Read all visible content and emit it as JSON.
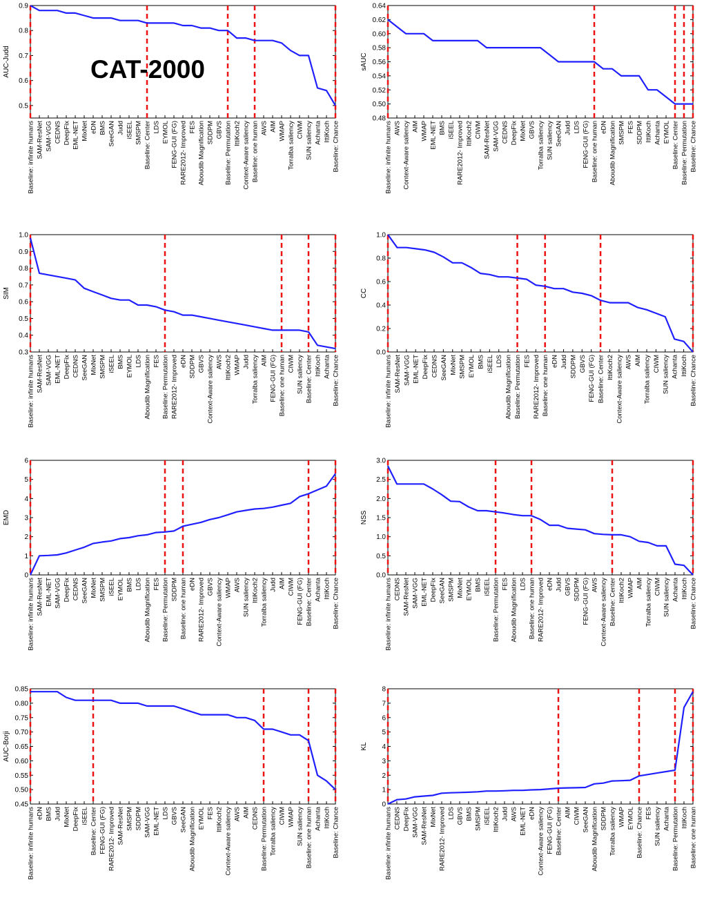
{
  "figure_label": "CAT-2000",
  "colors": {
    "line": "#1f1fff",
    "baseline_marker": "#ee1111",
    "axis": "#000000"
  },
  "chart_data": [
    {
      "type": "line",
      "ylabel": "AUC-Judd",
      "ylim": [
        0.45,
        0.9
      ],
      "yticks": [
        "0.5",
        "0.6",
        "0.7",
        "0.8",
        "0.9"
      ],
      "categories": [
        "Baseline: infinite humans",
        "SAM-ResNet",
        "SAM-VGG",
        "CEDNS",
        "DeepFix",
        "EML-NET",
        "MixNet",
        "eDN",
        "BMS",
        "SeeGAN",
        "Judd",
        "iSEEL",
        "SMSPM",
        "Baseline: Center",
        "LDS",
        "EYMOL",
        "FENG-GUI (FG)",
        "RARE2012- Improved",
        "FES",
        "Aboudib Magnification",
        "SDDPM",
        "GBVS",
        "Baseline: Permutation",
        "IttiKoch2",
        "Context-Aware saliency",
        "Baseline: one human",
        "AWS",
        "AIM",
        "WMAP",
        "Torralba saliency",
        "CIWM",
        "SUN saliency",
        "Achanta",
        "IttiKoch",
        "Baseline: Chance"
      ],
      "values": [
        0.9,
        0.88,
        0.88,
        0.88,
        0.87,
        0.87,
        0.86,
        0.85,
        0.85,
        0.85,
        0.84,
        0.84,
        0.84,
        0.83,
        0.83,
        0.83,
        0.83,
        0.82,
        0.82,
        0.81,
        0.81,
        0.8,
        0.8,
        0.77,
        0.77,
        0.76,
        0.76,
        0.76,
        0.75,
        0.72,
        0.7,
        0.7,
        0.57,
        0.56,
        0.5
      ],
      "baselines": [
        0,
        13,
        22,
        25,
        34
      ]
    },
    {
      "type": "line",
      "ylabel": "sAUC",
      "ylim": [
        0.48,
        0.64
      ],
      "yticks": [
        "0.48",
        "0.50",
        "0.52",
        "0.54",
        "0.56",
        "0.58",
        "0.60",
        "0.62",
        "0.64"
      ],
      "categories": [
        "Baseline: infinite humans",
        "AWS",
        "Context-Aware saliency",
        "AIM",
        "WMAP",
        "EML-NET",
        "BMS",
        "iSEEL",
        "RARE2012- Improved",
        "IttiKoch2",
        "CIWM",
        "SAM-ResNet",
        "SAM-VGG",
        "CEDNS",
        "DeepFix",
        "MixNet",
        "GBVS",
        "Torralba saliency",
        "SUN saliency",
        "SeeGAN",
        "Judd",
        "LDS",
        "FENG-GUI (FG)",
        "Baseline: one human",
        "eDN",
        "Aboudib Magnification",
        "SMSPM",
        "FES",
        "SDDPM",
        "IttiKoch",
        "Achanta",
        "EYMOL",
        "Baseline: Center",
        "Baseline: Permutation",
        "Baseline: Chance"
      ],
      "values": [
        0.62,
        0.61,
        0.6,
        0.6,
        0.6,
        0.59,
        0.59,
        0.59,
        0.59,
        0.59,
        0.59,
        0.58,
        0.58,
        0.58,
        0.58,
        0.58,
        0.58,
        0.58,
        0.57,
        0.56,
        0.56,
        0.56,
        0.56,
        0.56,
        0.55,
        0.55,
        0.54,
        0.54,
        0.54,
        0.52,
        0.52,
        0.51,
        0.5,
        0.5,
        0.5
      ],
      "baselines": [
        0,
        23,
        32,
        33,
        34
      ]
    },
    {
      "type": "line",
      "ylabel": "SIM",
      "ylim": [
        0.3,
        1.0
      ],
      "yticks": [
        "0.3",
        "0.4",
        "0.5",
        "0.6",
        "0.7",
        "0.8",
        "0.9",
        "1.0"
      ],
      "categories": [
        "Baseline: infinite humans",
        "SAM-ResNet",
        "SAM-VGG",
        "EML-NET",
        "DeepFix",
        "CEDNS",
        "SeeGAN",
        "MixNet",
        "SMSPM",
        "iSEEL",
        "BMS",
        "EYMOL",
        "LDS",
        "Aboudib Magnification",
        "FES",
        "Baseline: Permutation",
        "RARE2012- Improved",
        "eDN",
        "SDDPM",
        "GBVS",
        "Context-Aware saliency",
        "AWS",
        "IttiKoch2",
        "WMAP",
        "Judd",
        "Torralba saliency",
        "AIM",
        "FENG-GUI (FG)",
        "Baseline: one human",
        "CIWM",
        "SUN saliency",
        "Baseline: Center",
        "IttiKoch",
        "Achanta",
        "Baseline: Chance"
      ],
      "values": [
        0.98,
        0.77,
        0.76,
        0.75,
        0.74,
        0.73,
        0.68,
        0.66,
        0.64,
        0.62,
        0.61,
        0.61,
        0.58,
        0.58,
        0.57,
        0.55,
        0.54,
        0.52,
        0.52,
        0.51,
        0.5,
        0.49,
        0.48,
        0.47,
        0.46,
        0.45,
        0.44,
        0.43,
        0.43,
        0.43,
        0.43,
        0.42,
        0.34,
        0.33,
        0.32
      ],
      "baselines": [
        0,
        15,
        28,
        31,
        34
      ]
    },
    {
      "type": "line",
      "ylabel": "CC",
      "ylim": [
        0.0,
        1.0
      ],
      "yticks": [
        "0.0",
        "0.2",
        "0.4",
        "0.6",
        "0.8",
        "1.0"
      ],
      "categories": [
        "Baseline: infinite humans",
        "SAM-ResNet",
        "SAM-VGG",
        "EML-NET",
        "DeepFix",
        "CEDNS",
        "SeeGAN",
        "MixNet",
        "SMSPM",
        "EYMOL",
        "BMS",
        "iSEEL",
        "LDS",
        "Aboudib Magnification",
        "Baseline: Permutation",
        "FES",
        "RARE2012- Improved",
        "Baseline: one human",
        "eDN",
        "Judd",
        "SDDPM",
        "GBVS",
        "FENG-GUI (FG)",
        "Baseline: Center",
        "IttiKoch2",
        "Context-Aware saliency",
        "AWS",
        "AIM",
        "Torralba saliency",
        "CIWM",
        "SUN saliency",
        "Achanta",
        "IttiKoch",
        "Baseline: Chance"
      ],
      "values": [
        1.0,
        0.89,
        0.89,
        0.88,
        0.87,
        0.85,
        0.81,
        0.76,
        0.76,
        0.72,
        0.67,
        0.66,
        0.64,
        0.64,
        0.63,
        0.62,
        0.57,
        0.56,
        0.54,
        0.54,
        0.51,
        0.5,
        0.48,
        0.44,
        0.42,
        0.42,
        0.42,
        0.38,
        0.36,
        0.33,
        0.3,
        0.11,
        0.09,
        0.0
      ],
      "baselines": [
        0,
        14,
        17,
        23,
        33
      ]
    },
    {
      "type": "line",
      "ylabel": "EMD",
      "ylim": [
        0,
        6
      ],
      "yticks": [
        "0",
        "1",
        "2",
        "3",
        "4",
        "5",
        "6"
      ],
      "categories": [
        "Baseline: infinite humans",
        "SAM-ResNet",
        "EML-NET",
        "SAM-VGG",
        "DeepFix",
        "CEDNS",
        "SeeGAN",
        "MixNet",
        "SMSPM",
        "iSEEL",
        "EYMOL",
        "BMS",
        "LDS",
        "Aboudib Magnification",
        "FES",
        "Baseline: Permutation",
        "SDDPM",
        "Baseline: one human",
        "eDN",
        "RARE2012- Improved",
        "GBVS",
        "Context-Aware saliency",
        "WMAP",
        "AWS",
        "SUN saliency",
        "IttiKoch2",
        "Torralba saliency",
        "Judd",
        "AIM",
        "CIWM",
        "FENG-GUI (FG)",
        "Baseline: Center",
        "Achanta",
        "IttiKoch",
        "Baseline: Chance"
      ],
      "values": [
        0.0,
        1.0,
        1.02,
        1.05,
        1.15,
        1.3,
        1.45,
        1.65,
        1.72,
        1.78,
        1.9,
        1.95,
        2.05,
        2.1,
        2.22,
        2.25,
        2.3,
        2.55,
        2.65,
        2.75,
        2.9,
        3.0,
        3.15,
        3.3,
        3.38,
        3.45,
        3.48,
        3.55,
        3.65,
        3.75,
        4.1,
        4.25,
        4.45,
        4.65,
        5.3
      ],
      "baselines": [
        0,
        15,
        17,
        31,
        34
      ]
    },
    {
      "type": "line",
      "ylabel": "NSS",
      "ylim": [
        0.0,
        3.0
      ],
      "yticks": [
        "0.0",
        "0.5",
        "1.0",
        "1.5",
        "2.0",
        "2.5",
        "3.0"
      ],
      "categories": [
        "Baseline: infinite humans",
        "CEDNS",
        "SAM-ResNet",
        "SAM-VGG",
        "EML-NET",
        "DeepFix",
        "SeeGAN",
        "SMSPM",
        "MixNet",
        "EYMOL",
        "BMS",
        "iSEEL",
        "Baseline: Permutation",
        "FES",
        "Aboudib Magnification",
        "LDS",
        "Baseline: one human",
        "RARE2012- Improved",
        "eDN",
        "Judd",
        "GBVS",
        "SDDPM",
        "FENG-GUI (FG)",
        "AWS",
        "Context-Aware saliency",
        "Baseline: Center",
        "IttiKoch2",
        "WMAP",
        "AIM",
        "Torralba saliency",
        "CIWM",
        "SUN saliency",
        "Achanta",
        "IttiKoch",
        "Baseline: Chance"
      ],
      "values": [
        2.85,
        2.38,
        2.38,
        2.38,
        2.38,
        2.25,
        2.1,
        1.93,
        1.92,
        1.78,
        1.68,
        1.68,
        1.65,
        1.62,
        1.58,
        1.55,
        1.55,
        1.45,
        1.3,
        1.3,
        1.22,
        1.2,
        1.18,
        1.08,
        1.06,
        1.05,
        1.05,
        1.0,
        0.88,
        0.85,
        0.76,
        0.76,
        0.28,
        0.25,
        0.0
      ],
      "baselines": [
        0,
        12,
        16,
        25,
        34
      ]
    },
    {
      "type": "line",
      "ylabel": "AUC-Borji",
      "ylim": [
        0.45,
        0.85
      ],
      "yticks": [
        "0.45",
        "0.50",
        "0.55",
        "0.60",
        "0.65",
        "0.70",
        "0.75",
        "0.80",
        "0.85"
      ],
      "categories": [
        "Baseline: infinite humans",
        "eDN",
        "BMS",
        "Judd",
        "MixNet",
        "DeepFix",
        "iSEEL",
        "Baseline: Center",
        "FENG-GUI (FG)",
        "RARE2012- Improved",
        "SAM-ResNet",
        "SMSPM",
        "SDDPM",
        "SAM-VGG",
        "EML-NET",
        "LDS",
        "GBVS",
        "SeeGAN",
        "Aboudib Magnification",
        "EYMOL",
        "FES",
        "IttiKoch2",
        "Context-Aware saliency",
        "AWS",
        "AIM",
        "CEDNS",
        "Baseline: Permutation",
        "Torralba saliency",
        "CIWM",
        "WMAP",
        "SUN saliency",
        "Baseline: one human",
        "Achanta",
        "IttiKoch",
        "Baseline: Chance"
      ],
      "values": [
        0.84,
        0.84,
        0.84,
        0.84,
        0.82,
        0.81,
        0.81,
        0.81,
        0.81,
        0.81,
        0.8,
        0.8,
        0.8,
        0.79,
        0.79,
        0.79,
        0.79,
        0.78,
        0.77,
        0.76,
        0.76,
        0.76,
        0.76,
        0.75,
        0.75,
        0.74,
        0.71,
        0.71,
        0.7,
        0.69,
        0.69,
        0.67,
        0.55,
        0.53,
        0.5
      ],
      "baselines": [
        0,
        7,
        26,
        31,
        34
      ]
    },
    {
      "type": "line",
      "ylabel": "KL",
      "ylim": [
        0,
        8
      ],
      "yticks": [
        "0",
        "1",
        "2",
        "3",
        "4",
        "5",
        "6",
        "7",
        "8"
      ],
      "categories": [
        "Baseline: infinite humans",
        "CEDNS",
        "DeepFix",
        "SAM-VGG",
        "SAM-ResNet",
        "MixNet",
        "RARE2012- Improved",
        "LDS",
        "GBVS",
        "BMS",
        "SMSPM",
        "iSEEL",
        "IttiKoch2",
        "Judd",
        "AWS",
        "EML-NET",
        "eDN",
        "Context-Aware saliency",
        "FENG-GUI (FG)",
        "Baseline: Center",
        "AIM",
        "CIWM",
        "SeeGAN",
        "Aboudib Magnification",
        "SDDPM",
        "Torralba saliency",
        "WMAP",
        "EYMOL",
        "Baseline: Chance",
        "FES",
        "SUN saliency",
        "Achanta",
        "Baseline: Permutation",
        "IttiKoch",
        "Baseline: one human"
      ],
      "values": [
        0.0,
        0.3,
        0.35,
        0.5,
        0.55,
        0.6,
        0.75,
        0.78,
        0.8,
        0.82,
        0.85,
        0.9,
        0.9,
        0.92,
        0.95,
        0.95,
        0.98,
        1.0,
        1.05,
        1.1,
        1.12,
        1.13,
        1.15,
        1.4,
        1.45,
        1.6,
        1.62,
        1.65,
        1.95,
        2.05,
        2.15,
        2.25,
        2.35,
        6.7,
        7.8
      ],
      "baselines": [
        0,
        19,
        28,
        32,
        34
      ]
    }
  ]
}
